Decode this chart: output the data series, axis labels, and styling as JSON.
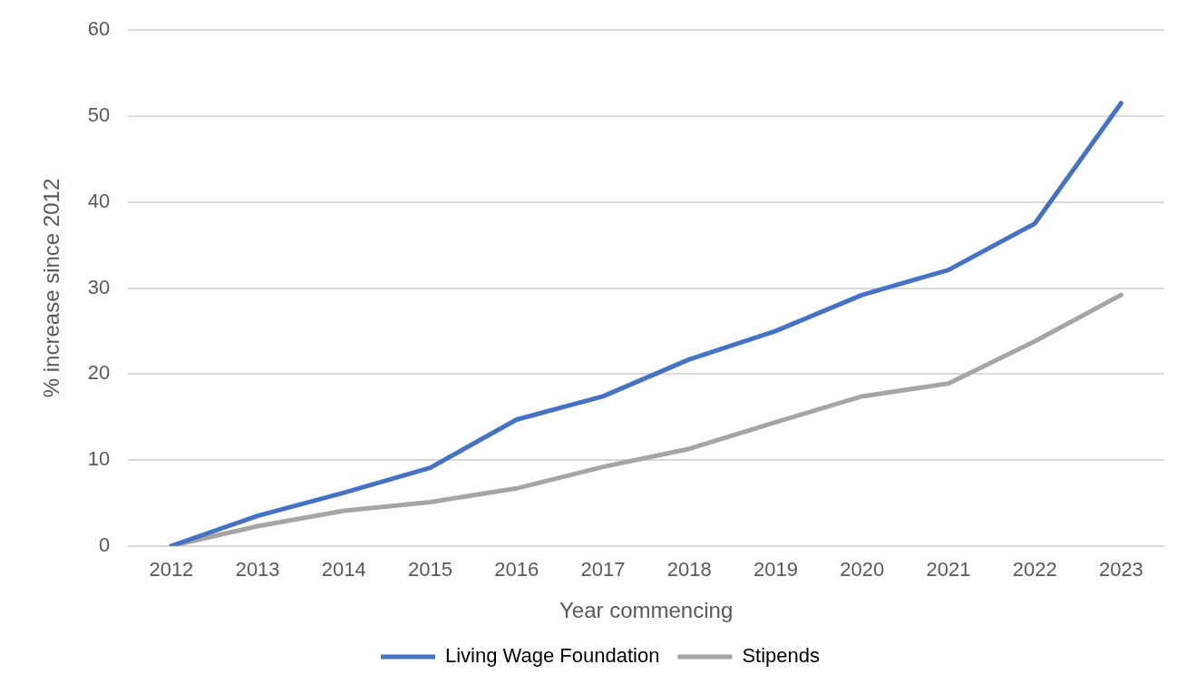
{
  "chart_data": {
    "type": "line",
    "xlabel": "Year commencing",
    "ylabel": "% increase since 2012",
    "categories": [
      "2012",
      "2013",
      "2014",
      "2015",
      "2016",
      "2017",
      "2018",
      "2019",
      "2020",
      "2021",
      "2022",
      "2023"
    ],
    "series": [
      {
        "name": "Living Wage Foundation",
        "color": "#4472c4",
        "values": [
          0,
          3.5,
          6.2,
          9.1,
          14.7,
          17.4,
          21.7,
          25.0,
          29.2,
          32.1,
          37.5,
          51.5
        ]
      },
      {
        "name": "Stipends",
        "color": "#a5a5a5",
        "values": [
          0,
          2.3,
          4.1,
          5.1,
          6.7,
          9.2,
          11.3,
          14.4,
          17.4,
          18.9,
          23.8,
          29.2
        ]
      }
    ],
    "ylim": [
      0,
      60
    ],
    "yticks": [
      0,
      10,
      20,
      30,
      40,
      50,
      60
    ],
    "grid": "y",
    "legend": "bottom",
    "marker": "none",
    "line_style": "solid"
  }
}
